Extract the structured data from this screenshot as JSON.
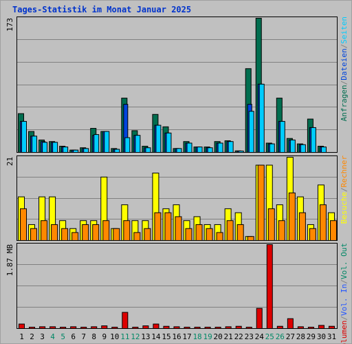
{
  "title": "Tages-Statistik im Monat Januar 2025",
  "colors": {
    "bg": "#c0c0c0",
    "grid": "#808080",
    "title": "#0033cc",
    "anfragen": "#006d4f",
    "dateien": "#0044dd",
    "seiten": "#00ccff",
    "besuche": "#ffff00",
    "rechner": "#ff8800",
    "volumen": "#dd0000",
    "vol_in": "#2255ff",
    "vol_out": "#008866",
    "weekend_day": "#008866",
    "weekday": "#000000"
  },
  "chart_data": [
    {
      "type": "bar",
      "panel": "hits",
      "y_max_label": "173",
      "ylim": [
        0,
        173
      ],
      "legend_vertical": [
        "Anfragen",
        "/",
        "Dateien",
        "/",
        "Seiten"
      ],
      "categories": [
        "1",
        "2",
        "3",
        "4",
        "5",
        "6",
        "7",
        "8",
        "9",
        "10",
        "11",
        "12",
        "13",
        "14",
        "15",
        "16",
        "17",
        "18",
        "19",
        "20",
        "21",
        "22",
        "23",
        "24",
        "25",
        "26",
        "27",
        "28",
        "29",
        "30",
        "31"
      ],
      "weekend_days": [
        "4",
        "5",
        "11",
        "12",
        "18",
        "19",
        "25",
        "26"
      ],
      "series": [
        {
          "name": "Anfragen",
          "values": [
            50,
            27,
            16,
            14,
            8,
            3,
            6,
            31,
            27,
            5,
            70,
            28,
            8,
            49,
            33,
            5,
            14,
            7,
            7,
            14,
            15,
            2,
            108,
            173,
            12,
            70,
            18,
            11,
            43,
            8,
            0
          ]
        },
        {
          "name": "Dateien",
          "values": [
            40,
            21,
            14,
            13,
            7,
            3,
            5,
            22,
            27,
            4,
            62,
            22,
            6,
            35,
            25,
            5,
            12,
            7,
            6,
            12,
            14,
            1,
            62,
            88,
            11,
            40,
            16,
            10,
            32,
            7,
            0
          ]
        },
        {
          "name": "Seiten",
          "values": [
            40,
            21,
            13,
            13,
            7,
            3,
            5,
            23,
            27,
            4,
            19,
            22,
            6,
            35,
            25,
            5,
            12,
            7,
            6,
            12,
            14,
            1,
            53,
            88,
            11,
            40,
            16,
            10,
            32,
            7,
            0
          ]
        }
      ]
    },
    {
      "type": "bar",
      "panel": "visits",
      "y_max_label": "21",
      "ylim": [
        0,
        21
      ],
      "legend_vertical": [
        "Besuche",
        "/",
        "Rechner"
      ],
      "categories": [
        "1",
        "2",
        "3",
        "4",
        "5",
        "6",
        "7",
        "8",
        "9",
        "10",
        "11",
        "12",
        "13",
        "14",
        "15",
        "16",
        "17",
        "18",
        "19",
        "20",
        "21",
        "22",
        "23",
        "24",
        "25",
        "26",
        "27",
        "28",
        "29",
        "30",
        "31"
      ],
      "series": [
        {
          "name": "Besuche",
          "values": [
            11,
            4,
            11,
            11,
            5,
            3,
            5,
            5,
            16,
            3,
            9,
            5,
            5,
            17,
            8,
            9,
            5,
            6,
            4,
            4,
            8,
            7,
            1,
            19,
            19,
            9,
            21,
            11,
            4,
            14,
            7
          ]
        },
        {
          "name": "Rechner",
          "values": [
            8,
            3,
            5,
            4,
            3,
            2,
            4,
            4,
            5,
            3,
            5,
            2,
            3,
            7,
            7,
            6,
            3,
            4,
            3,
            2,
            5,
            4,
            1,
            19,
            8,
            5,
            12,
            7,
            3,
            9,
            5
          ]
        }
      ]
    },
    {
      "type": "bar",
      "panel": "volume",
      "y_max_label": "1.87 MB",
      "unit": "MB",
      "ylim": [
        0,
        1.87
      ],
      "legend_vertical": [
        "Volumen",
        "/",
        "Vol. In",
        "/",
        "Vol. Out"
      ],
      "categories": [
        "1",
        "2",
        "3",
        "4",
        "5",
        "6",
        "7",
        "8",
        "9",
        "10",
        "11",
        "12",
        "13",
        "14",
        "15",
        "16",
        "17",
        "18",
        "19",
        "20",
        "21",
        "22",
        "23",
        "24",
        "25",
        "26",
        "27",
        "28",
        "29",
        "30",
        "31"
      ],
      "series": [
        {
          "name": "Volumen",
          "values": [
            0.1,
            0.03,
            0.04,
            0.04,
            0.03,
            0.04,
            0.03,
            0.04,
            0.06,
            0.03,
            0.36,
            0.03,
            0.06,
            0.1,
            0.05,
            0.04,
            0.03,
            0.03,
            0.03,
            0.03,
            0.04,
            0.05,
            0.03,
            0.45,
            1.87,
            0.05,
            0.22,
            0.04,
            0.03,
            0.07,
            0.05
          ]
        }
      ]
    }
  ]
}
